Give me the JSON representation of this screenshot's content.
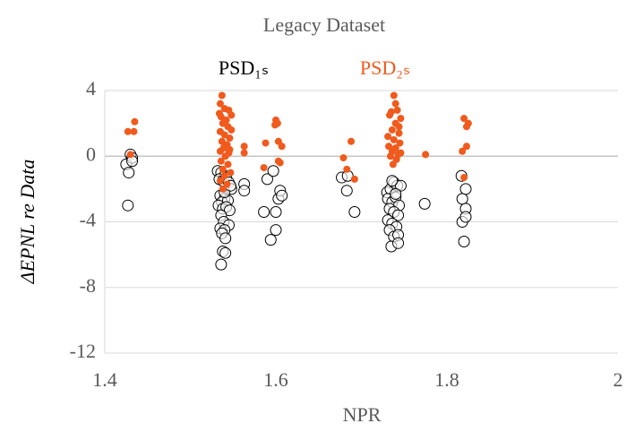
{
  "chart_data": {
    "type": "scatter",
    "title": "Legacy Dataset",
    "x_label": "NPR",
    "y_label": "ΔEPNL re Data",
    "xlim": [
      1.4,
      2
    ],
    "xticks": [
      1.4,
      1.6,
      1.8,
      2
    ],
    "ylim": [
      -12,
      4
    ],
    "yticks": [
      4,
      0,
      -4,
      -8,
      -12
    ],
    "grid": true,
    "legend": "top",
    "series": [
      {
        "name": "PSD₁ₛ",
        "color": "#000000",
        "marker": "open-circle",
        "x": [
          1.425,
          1.43,
          1.432,
          1.432,
          1.428,
          1.427,
          1.532,
          1.536,
          1.54,
          1.534,
          1.538,
          1.542,
          1.545,
          1.548,
          1.535,
          1.54,
          1.537,
          1.544,
          1.533,
          1.538,
          1.542,
          1.546,
          1.536,
          1.539,
          1.545,
          1.535,
          1.54,
          1.537,
          1.541,
          1.538,
          1.541,
          1.536,
          1.54,
          1.547,
          1.563,
          1.563,
          1.586,
          1.59,
          1.597,
          1.594,
          1.6,
          1.6,
          1.603,
          1.605,
          1.607,
          1.677,
          1.683,
          1.684,
          1.692,
          1.73,
          1.734,
          1.738,
          1.742,
          1.746,
          1.731,
          1.736,
          1.74,
          1.744,
          1.733,
          1.738,
          1.743,
          1.731,
          1.736,
          1.741,
          1.733,
          1.738,
          1.743,
          1.735,
          1.743,
          1.74,
          1.736,
          1.774,
          1.817,
          1.818,
          1.822,
          1.822,
          1.818,
          1.822,
          1.82
        ],
        "values": [
          -0.5,
          0.1,
          -0.1,
          -0.3,
          -1.0,
          -3.0,
          -0.9,
          -1.0,
          -1.2,
          -1.4,
          -1.5,
          -1.3,
          -1.6,
          -2.0,
          -2.4,
          -2.6,
          -2.8,
          -2.7,
          -3.0,
          -3.2,
          -3.1,
          -3.3,
          -3.6,
          -4.0,
          -4.2,
          -4.4,
          -4.5,
          -4.7,
          -5.0,
          -5.8,
          -5.9,
          -6.6,
          -2.2,
          -1.8,
          -1.7,
          -2.1,
          -3.4,
          -1.4,
          -0.9,
          -5.1,
          -3.4,
          -4.5,
          -2.6,
          -2.1,
          -2.4,
          -1.3,
          -2.1,
          -1.2,
          -3.4,
          -2.2,
          -2.0,
          -1.6,
          -1.8,
          -1.8,
          -2.6,
          -2.8,
          -2.5,
          -3.0,
          -3.2,
          -3.4,
          -3.6,
          -3.9,
          -4.1,
          -4.3,
          -4.5,
          -4.9,
          -4.8,
          -5.5,
          -5.3,
          -2.3,
          -1.5,
          -2.9,
          -1.2,
          -2.6,
          -2.0,
          -3.2,
          -4.0,
          -3.7,
          -5.2
        ]
      },
      {
        "name": "PSD₂ₛ",
        "color": "#f05a1c",
        "marker": "filled-circle",
        "x": [
          1.427,
          1.434,
          1.435,
          1.43,
          1.537,
          1.535,
          1.54,
          1.545,
          1.548,
          1.536,
          1.542,
          1.538,
          1.544,
          1.535,
          1.54,
          1.546,
          1.537,
          1.543,
          1.539,
          1.535,
          1.545,
          1.541,
          1.536,
          1.544,
          1.538,
          1.547,
          1.54,
          1.535,
          1.543,
          1.538,
          1.548,
          1.534,
          1.546,
          1.563,
          1.563,
          1.588,
          1.586,
          1.6,
          1.599,
          1.602,
          1.603,
          1.607,
          1.603,
          1.605,
          1.679,
          1.683,
          1.688,
          1.692,
          1.738,
          1.74,
          1.735,
          1.742,
          1.746,
          1.733,
          1.74,
          1.736,
          1.744,
          1.731,
          1.738,
          1.745,
          1.732,
          1.74,
          1.736,
          1.743,
          1.734,
          1.741,
          1.746,
          1.737,
          1.744,
          1.775,
          1.82,
          1.825,
          1.823,
          1.823,
          1.818,
          1.82
        ],
        "values": [
          1.5,
          1.5,
          2.1,
          0.1,
          3.7,
          3.2,
          2.9,
          2.8,
          2.5,
          2.4,
          2.2,
          2.0,
          1.8,
          1.5,
          1.3,
          1.1,
          0.9,
          0.7,
          0.5,
          0.3,
          0.2,
          0,
          -0.3,
          -0.5,
          -0.8,
          -1.0,
          -1.2,
          -1.5,
          -1.7,
          -2.0,
          1.6,
          2.6,
          0.4,
          0.6,
          0.2,
          0.8,
          -0.7,
          2.2,
          1.9,
          2.0,
          0.9,
          0.6,
          -0.3,
          -0.4,
          -0.1,
          -0.8,
          0.9,
          -1.4,
          3.7,
          3.2,
          2.7,
          2.8,
          2.3,
          2.5,
          2.0,
          1.6,
          1.4,
          1.2,
          1.0,
          0.8,
          0.6,
          0.5,
          0.3,
          0.1,
          0,
          -0.2,
          0.2,
          -0.5,
          1.8,
          0.1,
          2.3,
          2.0,
          1.8,
          0.6,
          0.3,
          -1.3
        ]
      }
    ]
  }
}
